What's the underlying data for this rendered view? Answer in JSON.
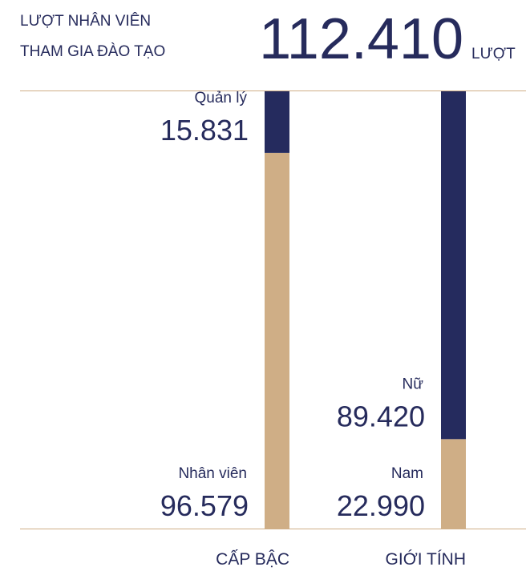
{
  "chart_data": {
    "type": "stacked_bar",
    "title_lines": [
      "LƯỢT NHÂN VIÊN",
      "THAM GIA ĐÀO TẠO"
    ],
    "total": {
      "value": 112410,
      "label": "112.410"
    },
    "unit": "LƯỢT",
    "bars": [
      {
        "category": "CẤP BẬC",
        "segments": [
          {
            "name": "Nhân viên",
            "value": 96579,
            "value_label": "96.579",
            "color": "#cfae86"
          },
          {
            "name": "Quản lý",
            "value": 15831,
            "value_label": "15.831",
            "color": "#252b5e"
          }
        ]
      },
      {
        "category": "GIỚI TÍNH",
        "segments": [
          {
            "name": "Nam",
            "value": 22990,
            "value_label": "22.990",
            "color": "#cfae86"
          },
          {
            "name": "Nữ",
            "value": 89420,
            "value_label": "89.420",
            "color": "#252b5e"
          }
        ]
      }
    ]
  }
}
